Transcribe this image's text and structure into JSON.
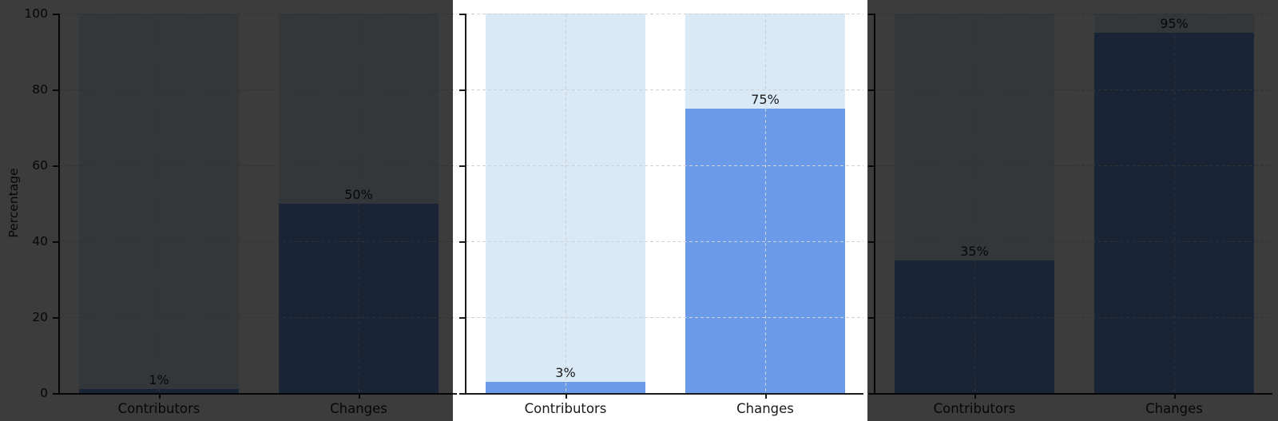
{
  "chart_data": {
    "type": "bar",
    "title": "",
    "xlabel": "",
    "ylabel": "Percentage",
    "ylim": [
      0,
      100
    ],
    "y_ticks": [
      0,
      20,
      40,
      60,
      80,
      100
    ],
    "y_tick_labels": [
      "0",
      "20",
      "40",
      "60",
      "80",
      "100"
    ],
    "categories": [
      "Contributors",
      "Changes"
    ],
    "grid": true,
    "legend_position": "none",
    "panels": [
      {
        "id": "left",
        "dimmed": true,
        "show_y_tick_labels": true,
        "show_ylabel": true,
        "series": [
          {
            "name": "background-to-100",
            "values": [
              100,
              100
            ]
          },
          {
            "name": "percentage",
            "values": [
              1,
              50
            ]
          }
        ],
        "values": [
          1,
          50
        ],
        "value_labels": [
          "1%",
          "50%"
        ]
      },
      {
        "id": "middle",
        "dimmed": false,
        "show_y_tick_labels": false,
        "show_ylabel": false,
        "series": [
          {
            "name": "background-to-100",
            "values": [
              100,
              100
            ]
          },
          {
            "name": "percentage",
            "values": [
              3,
              75
            ]
          }
        ],
        "values": [
          3,
          75
        ],
        "value_labels": [
          "3%",
          "75%"
        ]
      },
      {
        "id": "right",
        "dimmed": true,
        "show_y_tick_labels": false,
        "show_ylabel": false,
        "series": [
          {
            "name": "background-to-100",
            "values": [
              100,
              100
            ]
          },
          {
            "name": "percentage",
            "values": [
              35,
              95
            ]
          }
        ],
        "values": [
          35,
          95
        ],
        "value_labels": [
          "35%",
          "95%"
        ]
      }
    ],
    "colors": {
      "bar": "#6b9ae8",
      "bar_background": "#d9e9f6",
      "grid": "#ccd2d8",
      "spine": "#1a1a1a",
      "text": "#1a1a1a",
      "figure_background": "#ffffff",
      "dim_overlay": "rgba(0,0,0,0.765)"
    },
    "highlight": {
      "description": "middle panel spotlighted, outer panels dimmed"
    }
  }
}
